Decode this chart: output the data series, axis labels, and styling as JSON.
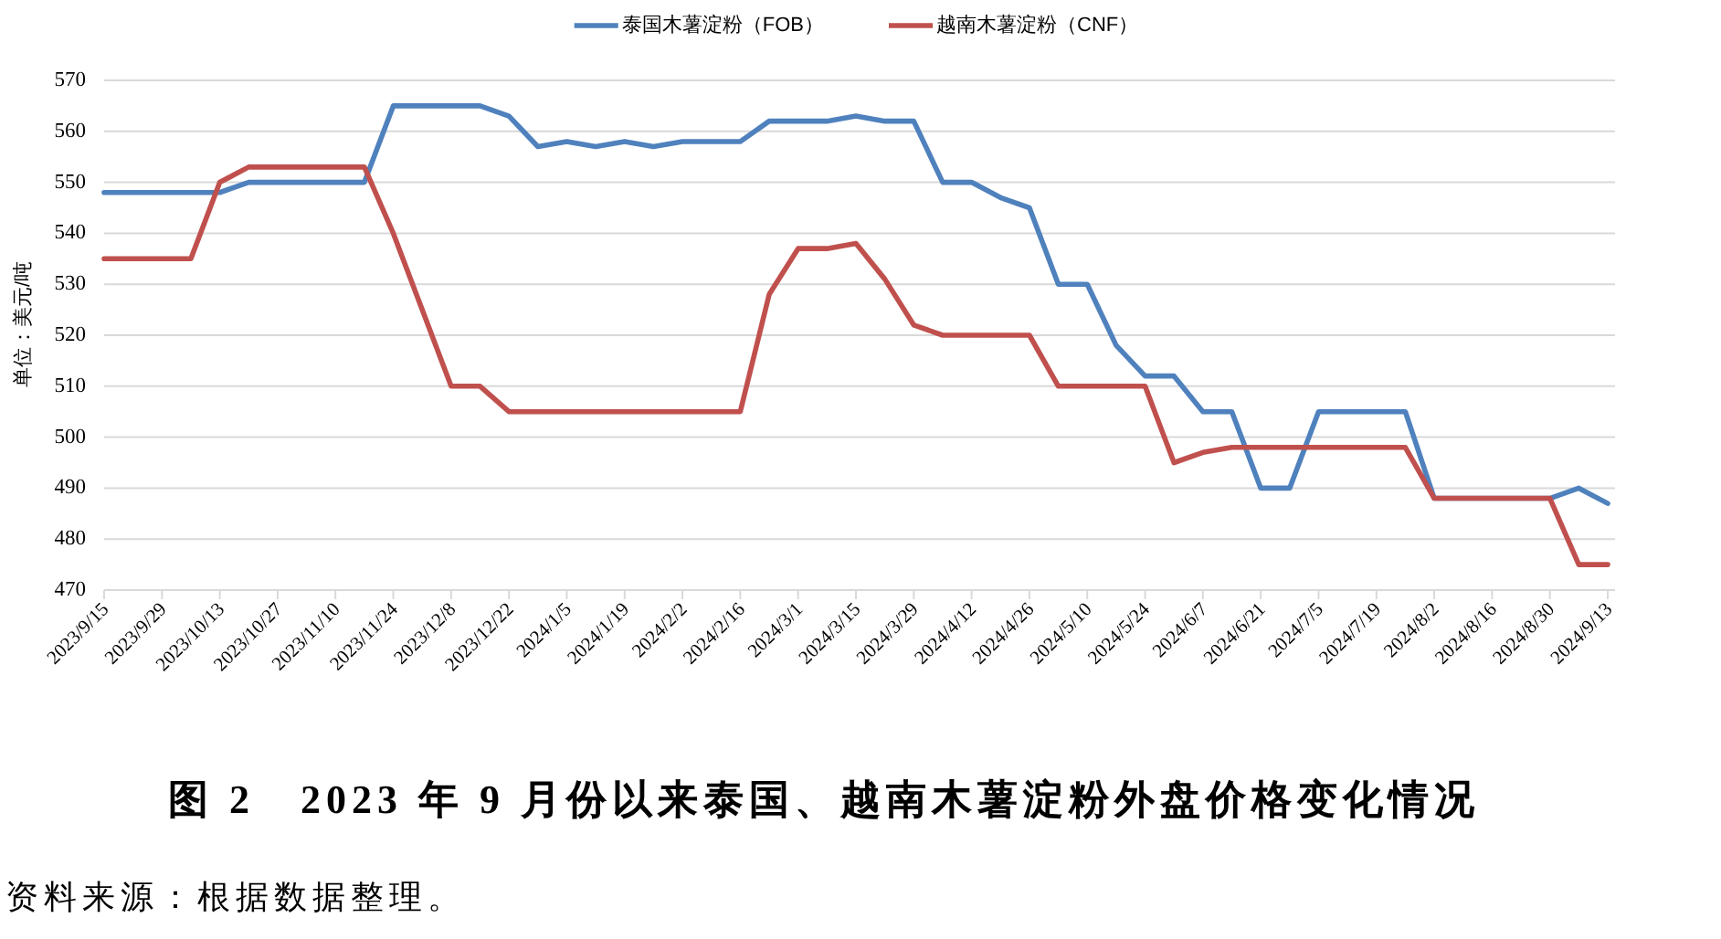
{
  "chart_data": {
    "type": "line",
    "title": "图 2　2023 年 9 月份以来泰国、越南木薯淀粉外盘价格变化情况",
    "ylabel": "单位：美元/吨",
    "annotations": [
      "资料来源：根据数据整理。"
    ],
    "categories": [
      "2023/9/15",
      null,
      "2023/9/29",
      null,
      "2023/10/13",
      null,
      "2023/10/27",
      null,
      "2023/11/10",
      null,
      "2023/11/24",
      null,
      "2023/12/8",
      null,
      "2023/12/22",
      null,
      "2024/1/5",
      null,
      "2024/1/19",
      null,
      "2024/2/2",
      null,
      "2024/2/16",
      null,
      "2024/3/1",
      null,
      "2024/3/15",
      null,
      "2024/3/29",
      null,
      "2024/4/12",
      null,
      "2024/4/26",
      null,
      "2024/5/10",
      null,
      "2024/5/24",
      null,
      "2024/6/7",
      null,
      "2024/6/21",
      null,
      "2024/7/5",
      null,
      "2024/7/19",
      null,
      "2024/8/2",
      null,
      "2024/8/16",
      null,
      "2024/8/30",
      null,
      "2024/9/13"
    ],
    "series": [
      {
        "name": "泰国木薯淀粉（FOB）",
        "color": "#4f81bd",
        "values": [
          548,
          548,
          548,
          548,
          548,
          550,
          550,
          550,
          550,
          550,
          565,
          565,
          565,
          565,
          563,
          557,
          558,
          557,
          558,
          557,
          558,
          558,
          558,
          562,
          562,
          562,
          563,
          562,
          562,
          550,
          550,
          547,
          545,
          530,
          530,
          518,
          512,
          512,
          505,
          505,
          490,
          490,
          505,
          505,
          505,
          505,
          488,
          488,
          488,
          488,
          488,
          490,
          487
        ]
      },
      {
        "name": "越南木薯淀粉（CNF）",
        "color": "#c0504d",
        "values": [
          535,
          535,
          535,
          535,
          550,
          553,
          553,
          553,
          553,
          553,
          540,
          525,
          510,
          510,
          505,
          505,
          505,
          505,
          505,
          505,
          505,
          505,
          505,
          528,
          537,
          537,
          538,
          531,
          522,
          520,
          520,
          520,
          520,
          510,
          510,
          510,
          510,
          495,
          497,
          498,
          498,
          498,
          498,
          498,
          498,
          498,
          488,
          488,
          488,
          488,
          488,
          475,
          475
        ]
      }
    ],
    "ylim": [
      470,
      570
    ],
    "yticks": [
      470,
      480,
      490,
      500,
      510,
      520,
      530,
      540,
      550,
      560,
      570
    ],
    "grid": "y",
    "legend": "top"
  }
}
